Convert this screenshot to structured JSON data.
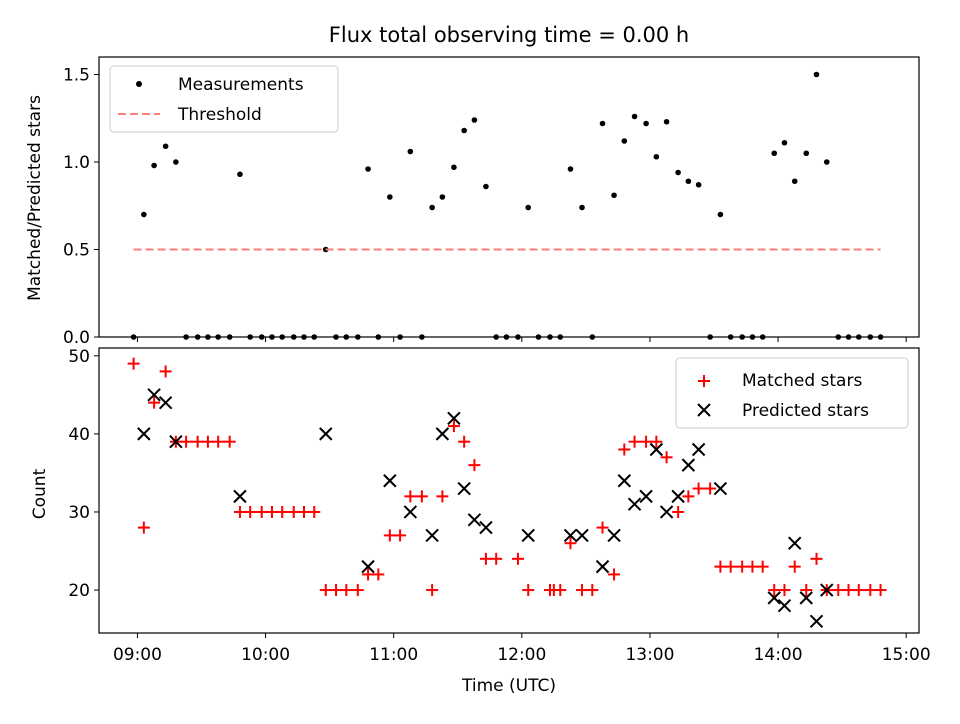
{
  "title": "Flux total observing time = 0.00 h",
  "chart_data": [
    {
      "type": "scatter",
      "ylabel": "Matched/Predicted stars",
      "xlim": [
        8.7,
        15.1
      ],
      "ylim": [
        0,
        1.6
      ],
      "yticks": [
        "0.0",
        "0.5",
        "1.0",
        "1.5"
      ],
      "xticks": [
        9,
        10,
        11,
        12,
        13,
        14,
        15
      ],
      "legend_position": "top-left",
      "series": [
        {
          "name": "Measurements",
          "color": "#000000",
          "marker": "dot",
          "x": [
            8.97,
            9.05,
            9.13,
            9.22,
            9.3,
            9.38,
            9.47,
            9.55,
            9.63,
            9.72,
            9.8,
            9.88,
            9.97,
            10.05,
            10.13,
            10.22,
            10.3,
            10.38,
            10.47,
            10.55,
            10.63,
            10.72,
            10.8,
            10.88,
            10.97,
            11.05,
            11.13,
            11.22,
            11.3,
            11.38,
            11.47,
            11.55,
            11.63,
            11.72,
            11.8,
            11.88,
            11.97,
            12.05,
            12.13,
            12.22,
            12.3,
            12.38,
            12.47,
            12.55,
            12.63,
            12.72,
            12.8,
            12.88,
            12.97,
            13.05,
            13.13,
            13.22,
            13.3,
            13.38,
            13.47,
            13.55,
            13.63,
            13.72,
            13.8,
            13.88,
            13.97,
            14.05,
            14.13,
            14.22,
            14.3,
            14.38,
            14.47,
            14.55,
            14.63,
            14.72,
            14.8
          ],
          "y": [
            0,
            0.7,
            0.98,
            1.09,
            1.0,
            0,
            0,
            0,
            0,
            0,
            0.93,
            0,
            0,
            0,
            0,
            0,
            0,
            0,
            0.5,
            0,
            0,
            0,
            0.96,
            0,
            0.8,
            0,
            1.06,
            0,
            0.74,
            0.8,
            0.97,
            1.18,
            1.24,
            0.86,
            0,
            0,
            0,
            0.74,
            0,
            0,
            0,
            0.96,
            0.74,
            0,
            1.22,
            0.81,
            1.12,
            1.26,
            1.22,
            1.03,
            1.23,
            0.94,
            0.89,
            0.87,
            0,
            0.7,
            0,
            0,
            0,
            0,
            1.05,
            1.11,
            0.89,
            1.05,
            1.5,
            1.0,
            0,
            0,
            0,
            0,
            0
          ]
        },
        {
          "name": "Threshold",
          "color": "#ff7f7f",
          "style": "dashed",
          "x": [
            8.97,
            14.8
          ],
          "y": [
            0.5,
            0.5
          ]
        }
      ]
    },
    {
      "type": "scatter",
      "xlabel": "Time (UTC)",
      "ylabel": "Count",
      "xlim": [
        8.7,
        15.1
      ],
      "ylim": [
        14.5,
        51
      ],
      "yticks": [
        "20",
        "30",
        "40",
        "50"
      ],
      "xticks": [
        9,
        10,
        11,
        12,
        13,
        14,
        15
      ],
      "xticklabels": [
        "09:00",
        "10:00",
        "11:00",
        "12:00",
        "13:00",
        "14:00",
        "15:00"
      ],
      "legend_position": "top-right",
      "series": [
        {
          "name": "Matched stars",
          "color": "#ff0000",
          "marker": "plus",
          "x": [
            8.97,
            9.05,
            9.13,
            9.22,
            9.3,
            9.38,
            9.47,
            9.55,
            9.63,
            9.72,
            9.8,
            9.88,
            9.97,
            10.05,
            10.13,
            10.22,
            10.3,
            10.38,
            10.47,
            10.55,
            10.63,
            10.72,
            10.8,
            10.88,
            10.97,
            11.05,
            11.13,
            11.22,
            11.3,
            11.38,
            11.47,
            11.55,
            11.63,
            11.72,
            11.8,
            11.97,
            12.05,
            12.22,
            12.25,
            12.3,
            12.38,
            12.47,
            12.55,
            12.63,
            12.72,
            12.8,
            12.88,
            12.97,
            13.05,
            13.13,
            13.22,
            13.3,
            13.38,
            13.47,
            13.55,
            13.63,
            13.72,
            13.8,
            13.88,
            13.97,
            14.05,
            14.13,
            14.22,
            14.3,
            14.38,
            14.47,
            14.55,
            14.63,
            14.72,
            14.8
          ],
          "y": [
            49,
            28,
            44,
            48,
            39,
            39,
            39,
            39,
            39,
            39,
            30,
            30,
            30,
            30,
            30,
            30,
            30,
            30,
            20,
            20,
            20,
            20,
            22,
            22,
            27,
            27,
            32,
            32,
            20,
            32,
            41,
            39,
            36,
            24,
            24,
            24,
            20,
            20,
            20,
            20,
            26,
            20,
            20,
            28,
            22,
            38,
            39,
            39,
            39,
            37,
            30,
            32,
            33,
            33,
            23,
            23,
            23,
            23,
            23,
            20,
            20,
            23,
            20,
            24,
            20,
            20,
            20,
            20,
            20,
            20
          ]
        },
        {
          "name": "Predicted stars",
          "color": "#000000",
          "marker": "x",
          "x": [
            9.05,
            9.13,
            9.22,
            9.3,
            9.8,
            10.47,
            10.8,
            10.97,
            11.13,
            11.3,
            11.38,
            11.47,
            11.55,
            11.63,
            11.72,
            12.05,
            12.38,
            12.47,
            12.63,
            12.72,
            12.8,
            12.88,
            12.97,
            13.05,
            13.13,
            13.22,
            13.3,
            13.38,
            13.55,
            13.97,
            14.05,
            14.13,
            14.22,
            14.3,
            14.38
          ],
          "y": [
            40,
            45,
            44,
            39,
            32,
            40,
            23,
            34,
            30,
            27,
            40,
            42,
            33,
            29,
            28,
            27,
            27,
            27,
            23,
            27,
            34,
            31,
            32,
            38,
            30,
            32,
            36,
            38,
            33,
            19,
            18,
            26,
            19,
            16,
            20
          ]
        }
      ]
    }
  ]
}
